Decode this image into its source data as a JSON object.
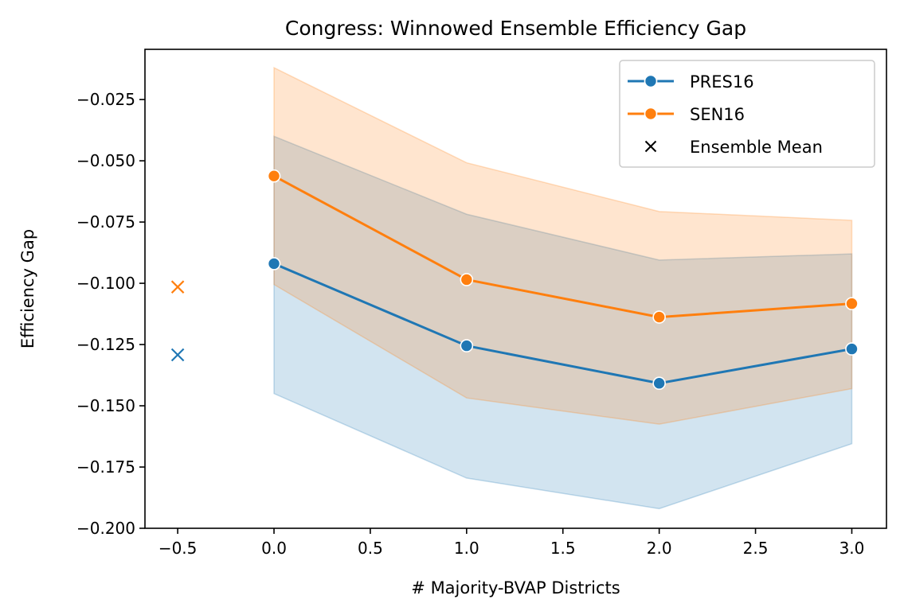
{
  "chart_data": {
    "type": "line",
    "title": "Congress: Winnowed Ensemble Efficiency Gap",
    "xlabel": "# Majority-BVAP Districts",
    "ylabel": "Efficiency Gap",
    "xlim": [
      -0.67,
      3.18
    ],
    "ylim": [
      -0.2,
      -0.0045
    ],
    "xticks": [
      -0.5,
      0.0,
      0.5,
      1.0,
      1.5,
      2.0,
      2.5,
      3.0
    ],
    "xtick_labels": [
      "−0.5",
      "0.0",
      "0.5",
      "1.0",
      "1.5",
      "2.0",
      "2.5",
      "3.0"
    ],
    "yticks": [
      -0.2,
      -0.175,
      -0.15,
      -0.125,
      -0.1,
      -0.075,
      -0.05,
      -0.025
    ],
    "ytick_labels": [
      "−0.200",
      "−0.175",
      "−0.150",
      "−0.125",
      "−0.100",
      "−0.075",
      "−0.050",
      "−0.025"
    ],
    "grid": false,
    "legend_position": "top-right",
    "series": [
      {
        "name": "PRES16",
        "color": "#1f77b4",
        "x": [
          0,
          1,
          2,
          3
        ],
        "y": [
          -0.092,
          -0.1255,
          -0.1408,
          -0.1268
        ],
        "band_low": [
          -0.145,
          -0.1795,
          -0.192,
          -0.1655
        ],
        "band_high": [
          -0.04,
          -0.0718,
          -0.0905,
          -0.088
        ],
        "ensemble_mean": {
          "x": -0.5,
          "y": -0.1292
        }
      },
      {
        "name": "SEN16",
        "color": "#ff7f0e",
        "x": [
          0,
          1,
          2,
          3
        ],
        "y": [
          -0.0562,
          -0.0985,
          -0.1138,
          -0.1083
        ],
        "band_low": [
          -0.1005,
          -0.1468,
          -0.1575,
          -0.143
        ],
        "band_high": [
          -0.012,
          -0.0508,
          -0.0707,
          -0.0743
        ],
        "ensemble_mean": {
          "x": -0.5,
          "y": -0.1015
        }
      }
    ],
    "legend": [
      {
        "label": "PRES16",
        "kind": "line-marker",
        "color": "#1f77b4"
      },
      {
        "label": "SEN16",
        "kind": "line-marker",
        "color": "#ff7f0e"
      },
      {
        "label": "Ensemble Mean",
        "kind": "x-marker",
        "color": "#000000"
      }
    ]
  }
}
